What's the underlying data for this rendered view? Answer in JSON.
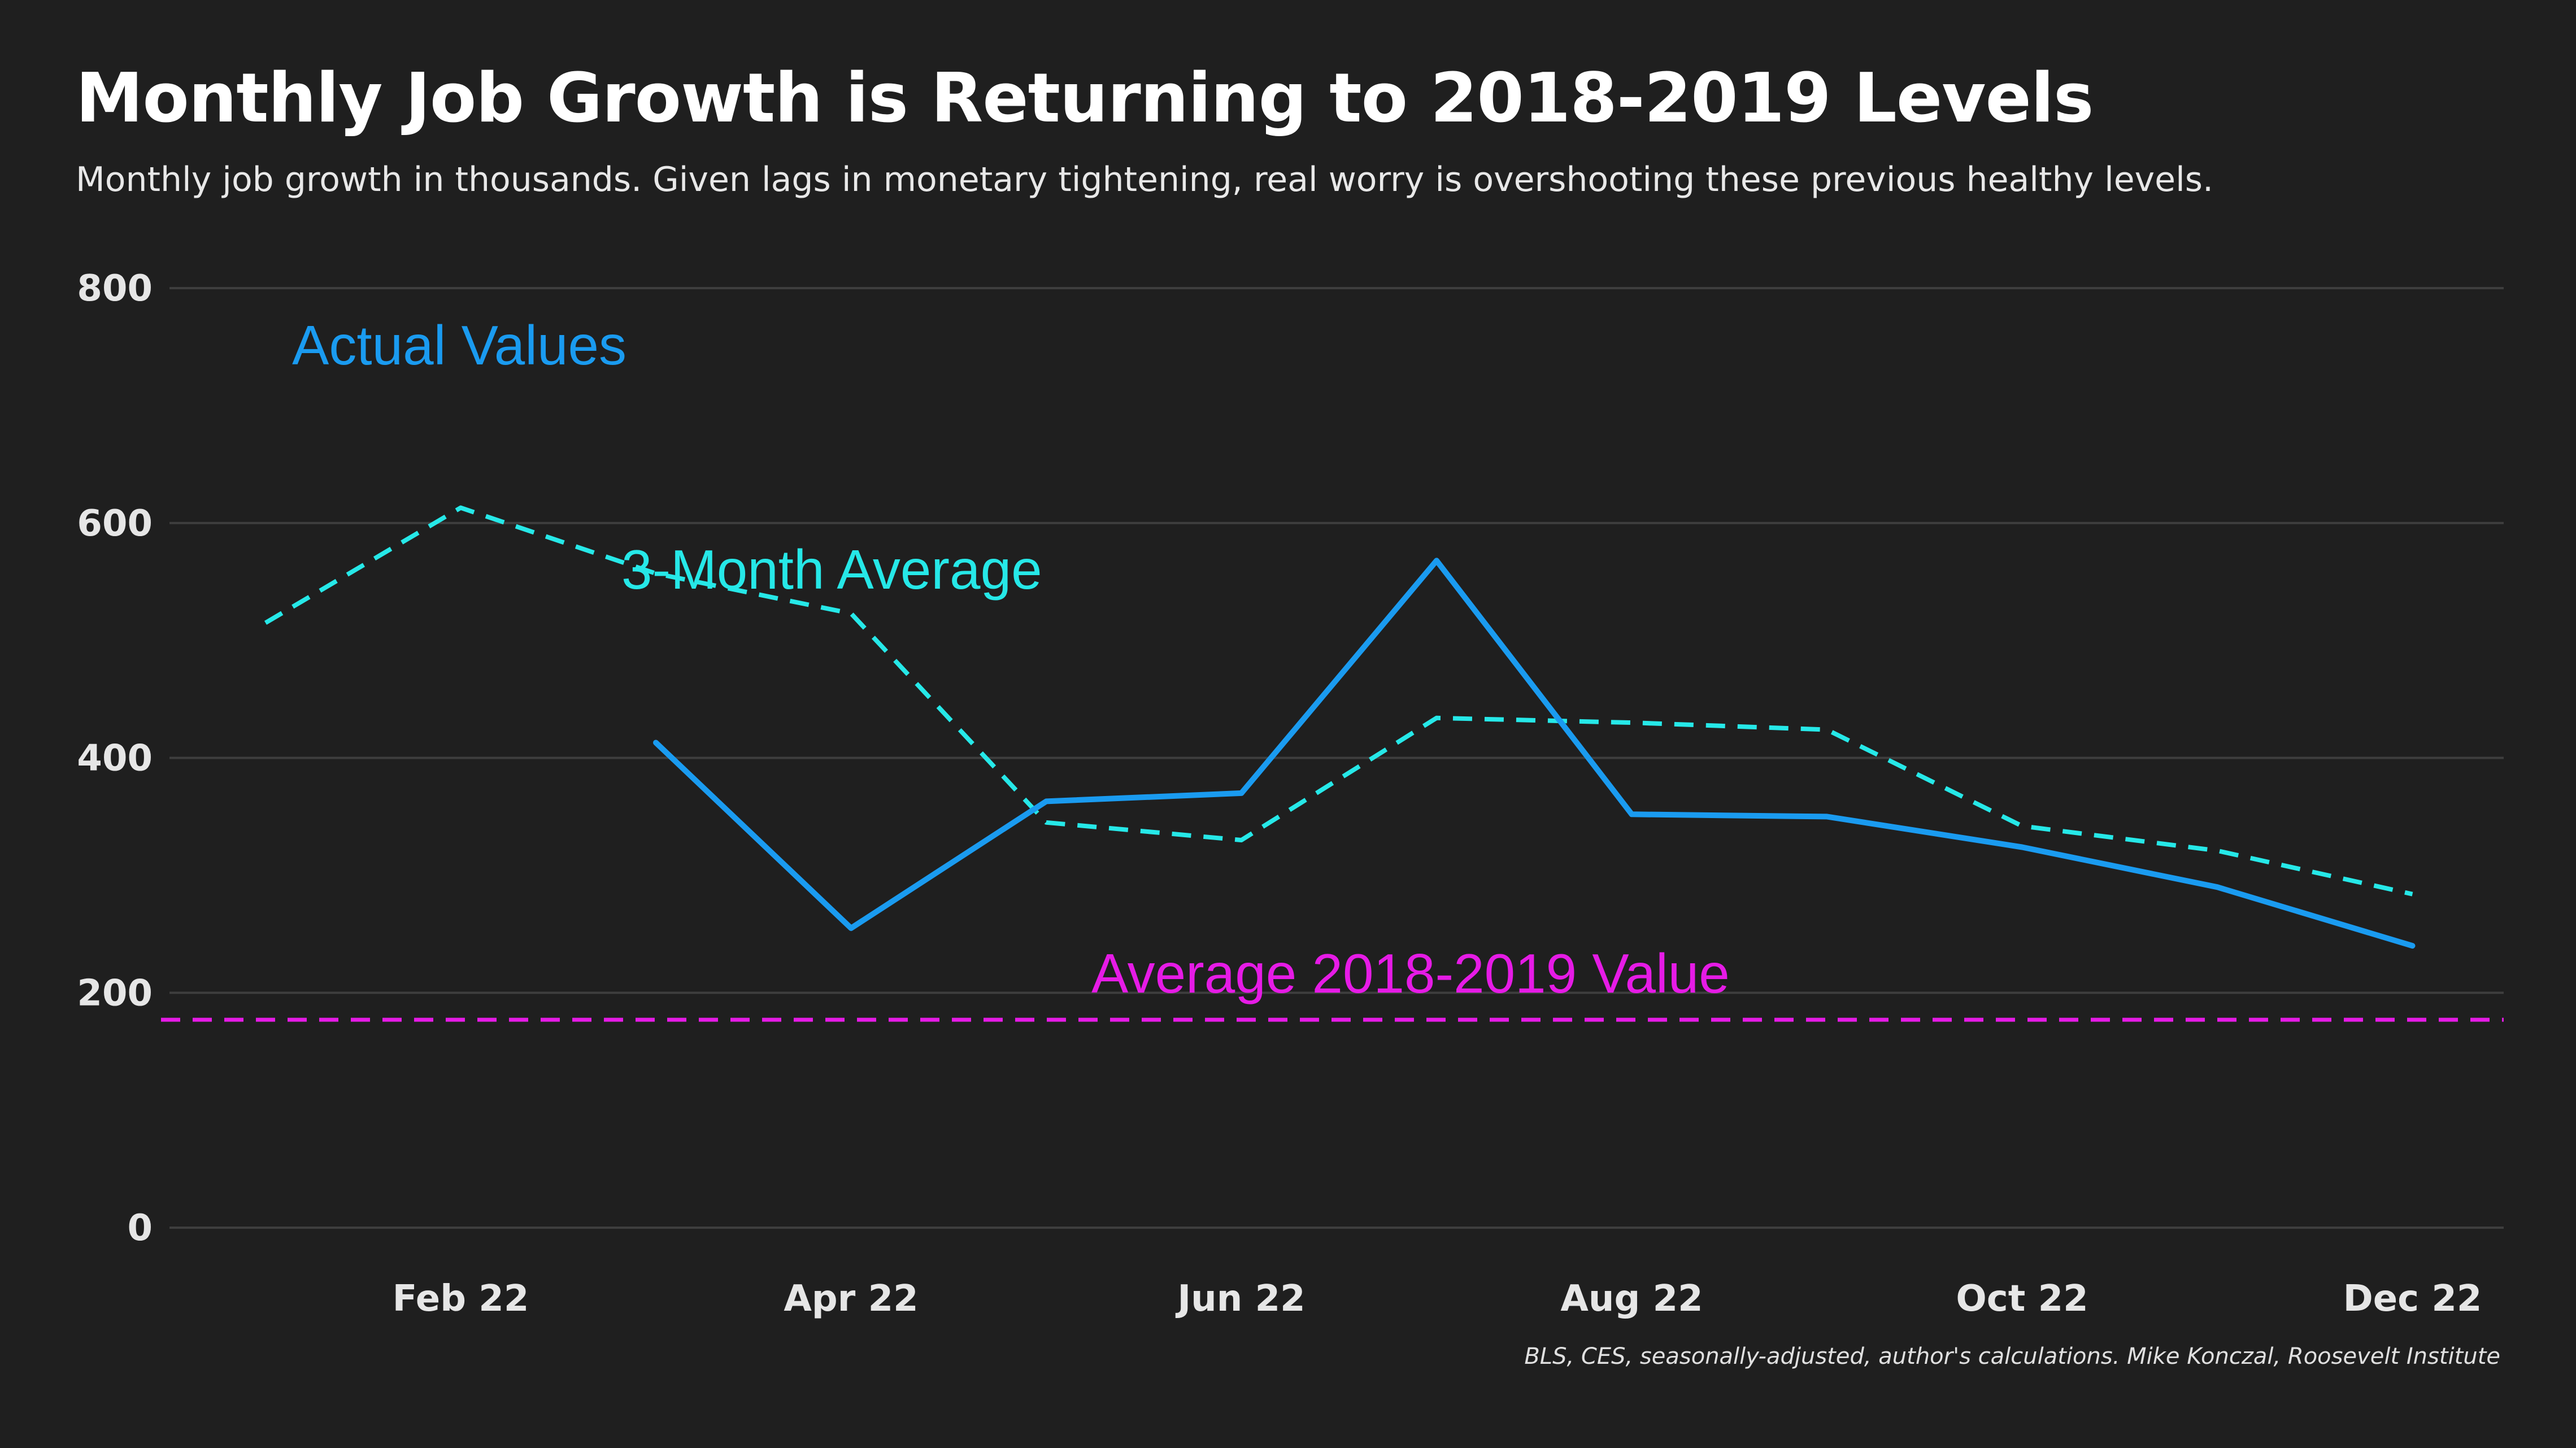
{
  "title": "Monthly Job Growth is Returning to 2018-2019 Levels",
  "subtitle": "Monthly job growth in thousands. Given lags in monetary tightening, real worry is overshooting these previous healthy levels.",
  "source": "BLS, CES, seasonally-adjusted, author's calculations. Mike Konczal, Roosevelt Institute",
  "colors": {
    "background": "#1f1f1f",
    "actual": "#1a9bf0",
    "average3": "#26e8e8",
    "baseline": "#e61be6",
    "grid": "#3e3e3e"
  },
  "chart_data": {
    "type": "line",
    "x": [
      "Jan 22",
      "Feb 22",
      "Mar 22",
      "Apr 22",
      "May 22",
      "Jun 22",
      "Jul 22",
      "Aug 22",
      "Sep 22",
      "Oct 22",
      "Nov 22",
      "Dec 22"
    ],
    "x_tick_labels": [
      "Feb 22",
      "Apr 22",
      "Jun 22",
      "Aug 22",
      "Oct 22",
      "Dec 22"
    ],
    "y_tick_labels": [
      "0",
      "200",
      "400",
      "600",
      "800"
    ],
    "ylim": [
      0,
      800
    ],
    "xlabel": "",
    "ylabel": "",
    "grid": true,
    "series": [
      {
        "name": "3-Month Average",
        "style": "dashed",
        "color": "#26e8e8",
        "values": [
          515,
          613,
          557,
          523,
          345,
          330,
          434,
          430,
          424,
          342,
          321,
          284
        ]
      },
      {
        "name": "Actual Values",
        "style": "solid",
        "color": "#1a9bf0",
        "values": [
          null,
          null,
          413,
          255,
          363,
          370,
          568,
          352,
          350,
          324,
          290,
          240
        ]
      }
    ],
    "reference_lines": [
      {
        "name": "Average 2018-2019 Value",
        "value": 177,
        "style": "dashed",
        "color": "#e61be6"
      }
    ],
    "annotations": [
      {
        "text": "Actual Values",
        "color": "#1a9bf0"
      },
      {
        "text": "3-Month Average",
        "color": "#26e8e8"
      },
      {
        "text": "Average 2018-2019 Value",
        "color": "#e61be6"
      }
    ]
  }
}
